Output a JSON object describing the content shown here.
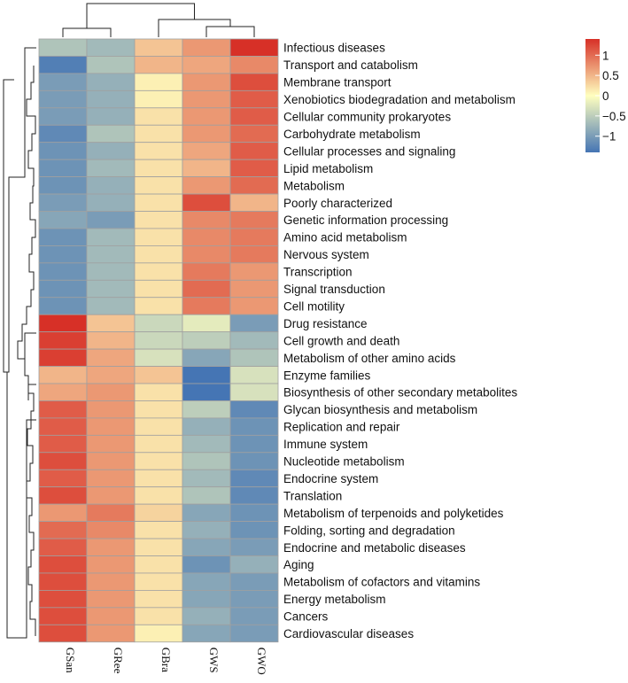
{
  "chart_data": {
    "type": "heatmap",
    "columns": [
      "GSan",
      "GRee",
      "GBra",
      "GWS",
      "GWO"
    ],
    "rows": [
      "Infectious diseases",
      "Transport and catabolism",
      "Membrane transport",
      "Xenobiotics biodegradation and metabolism",
      "Cellular community prokaryotes",
      "Carbohydrate metabolism",
      "Cellular processes and signaling",
      "Lipid metabolism",
      "Metabolism",
      "Poorly characterized",
      "Genetic information processing",
      "Amino acid metabolism",
      "Nervous system",
      "Transcription",
      "Signal transduction",
      "Cell motility",
      "Drug resistance",
      "Cell growth and death",
      "Metabolism of other amino acids",
      "Enzyme families",
      "Biosynthesis of other secondary metabolites",
      "Glycan biosynthesis and metabolism",
      "Replication and repair",
      "Immune system",
      "Nucleotide metabolism",
      "Endocrine system",
      "Translation",
      "Metabolism of terpenoids and polyketides",
      "Folding, sorting and degradation",
      "Endocrine and metabolic diseases",
      "Aging",
      "Metabolism of cofactors and vitamins",
      "Energy metabolism",
      "Cancers",
      "Cardiovascular diseases"
    ],
    "values": [
      [
        -0.6,
        -0.7,
        0.4,
        0.7,
        1.4
      ],
      [
        -1.3,
        -0.6,
        0.5,
        0.6,
        0.8
      ],
      [
        -1.0,
        -0.8,
        0.1,
        0.7,
        1.2
      ],
      [
        -1.0,
        -0.8,
        0.1,
        0.7,
        1.1
      ],
      [
        -1.0,
        -0.8,
        0.2,
        0.7,
        1.1
      ],
      [
        -1.2,
        -0.6,
        0.2,
        0.7,
        1.0
      ],
      [
        -1.1,
        -0.8,
        0.2,
        0.6,
        1.1
      ],
      [
        -1.1,
        -0.7,
        0.2,
        0.5,
        1.1
      ],
      [
        -1.1,
        -0.8,
        0.2,
        0.7,
        1.0
      ],
      [
        -1.0,
        -0.8,
        0.2,
        1.2,
        0.5
      ],
      [
        -0.9,
        -1.0,
        0.2,
        0.8,
        0.9
      ],
      [
        -1.1,
        -0.7,
        0.2,
        0.8,
        0.9
      ],
      [
        -1.1,
        -0.7,
        0.2,
        0.8,
        0.9
      ],
      [
        -1.1,
        -0.7,
        0.2,
        0.9,
        0.7
      ],
      [
        -1.1,
        -0.7,
        0.2,
        1.0,
        0.7
      ],
      [
        -1.1,
        -0.7,
        0.2,
        0.9,
        0.7
      ],
      [
        1.4,
        0.4,
        -0.4,
        -0.2,
        -1.0
      ],
      [
        1.3,
        0.5,
        -0.4,
        -0.5,
        -0.7
      ],
      [
        1.3,
        0.6,
        -0.3,
        -0.9,
        -0.6
      ],
      [
        0.5,
        0.6,
        0.4,
        -1.4,
        -0.3
      ],
      [
        0.6,
        0.7,
        0.2,
        -1.4,
        -0.3
      ],
      [
        1.1,
        0.7,
        0.2,
        -0.5,
        -1.2
      ],
      [
        1.1,
        0.7,
        0.2,
        -0.8,
        -1.1
      ],
      [
        1.1,
        0.7,
        0.2,
        -0.7,
        -1.1
      ],
      [
        1.2,
        0.7,
        0.2,
        -0.6,
        -1.1
      ],
      [
        1.1,
        0.7,
        0.2,
        -0.7,
        -1.2
      ],
      [
        1.2,
        0.7,
        0.2,
        -0.6,
        -1.2
      ],
      [
        0.7,
        0.9,
        0.3,
        -0.9,
        -1.1
      ],
      [
        1.0,
        0.8,
        0.2,
        -0.8,
        -1.1
      ],
      [
        1.1,
        0.7,
        0.2,
        -0.9,
        -1.0
      ],
      [
        1.2,
        0.7,
        0.2,
        -1.1,
        -0.8
      ],
      [
        1.2,
        0.7,
        0.2,
        -0.9,
        -1.0
      ],
      [
        1.2,
        0.7,
        0.2,
        -0.9,
        -1.0
      ],
      [
        1.2,
        0.7,
        0.2,
        -0.8,
        -1.0
      ],
      [
        1.2,
        0.7,
        0.1,
        -0.9,
        -1.0
      ]
    ],
    "color_scale": {
      "min": -1.4,
      "mid": 0,
      "max": 1.4,
      "low_color": "#4575b4",
      "mid_color": "#ffffbf",
      "high_color": "#d73027"
    },
    "legend": {
      "ticks": [
        1,
        0.5,
        0,
        -0.5,
        -1
      ],
      "tick_labels": [
        "1",
        "0.5",
        "0",
        "−0.5",
        "−1"
      ],
      "position": "top-right"
    },
    "cell_border_color": "#a0a0a0",
    "dendrograms": [
      "rows",
      "columns"
    ]
  }
}
